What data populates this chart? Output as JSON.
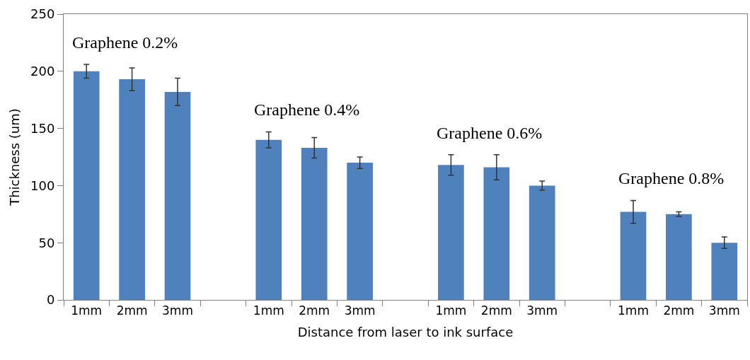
{
  "chart_data": {
    "type": "bar",
    "xlabel": "Distance from laser to ink surface",
    "ylabel": "Thickness (um)",
    "categories": [
      "1mm",
      "2mm",
      "3mm",
      null,
      "1mm",
      "2mm",
      "3mm",
      null,
      "1mm",
      "2mm",
      "3mm",
      null,
      "1mm",
      "2mm",
      "3mm"
    ],
    "values": [
      200,
      193,
      182,
      null,
      140,
      133,
      120,
      null,
      118,
      116,
      100,
      null,
      77,
      75,
      50
    ],
    "errors": [
      6,
      10,
      12,
      null,
      7,
      9,
      5,
      null,
      9,
      11,
      4,
      null,
      10,
      2,
      5
    ],
    "color": "#4f81bd",
    "ylim": [
      0,
      250
    ],
    "yticks": [
      0,
      50,
      100,
      150,
      200,
      250
    ],
    "annotations": [
      "Graphene 0.2%",
      "Graphene 0.4%",
      "Graphene 0.6%",
      "Graphene 0.8%"
    ],
    "grid": false,
    "legend": false
  }
}
